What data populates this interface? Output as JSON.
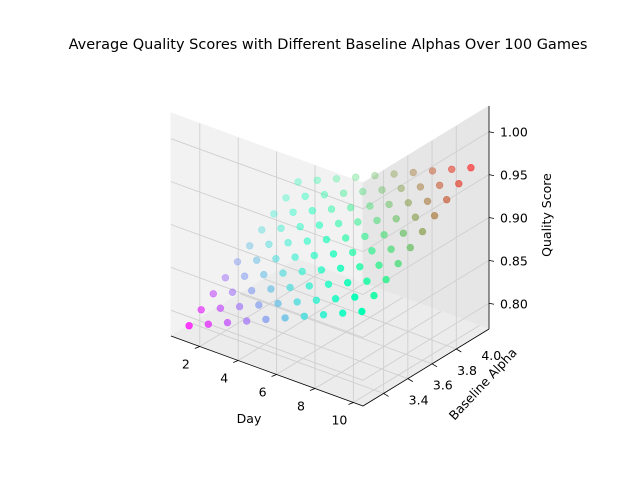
{
  "chart_data": {
    "type": "scatter",
    "title": "Average Quality Scores with Different Baseline Alphas Over 100 Games",
    "xlabel": "Day",
    "ylabel": "Baseline Alpha",
    "zlabel": "Quality Score",
    "x_ticks": [
      "2",
      "4",
      "6",
      "8",
      "10"
    ],
    "y_ticks": [
      "3.4",
      "3.6",
      "3.8",
      "4.0"
    ],
    "z_ticks": [
      "0.80",
      "0.85",
      "0.90",
      "0.95",
      "1.00"
    ],
    "xlim": [
      0.5,
      10.5
    ],
    "ylim": [
      3.23,
      4.27
    ],
    "zlim": [
      0.77,
      1.03
    ],
    "grid": true,
    "colormap": "rainbow",
    "point_alpha_range": [
      0.3,
      1.0
    ],
    "points": [
      {
        "x": 1,
        "y": 3.3,
        "z": 0.78
      },
      {
        "x": 2,
        "y": 3.3,
        "z": 0.79
      },
      {
        "x": 3,
        "y": 3.3,
        "z": 0.8
      },
      {
        "x": 4,
        "y": 3.3,
        "z": 0.81
      },
      {
        "x": 5,
        "y": 3.3,
        "z": 0.82
      },
      {
        "x": 6,
        "y": 3.3,
        "z": 0.83
      },
      {
        "x": 7,
        "y": 3.3,
        "z": 0.84
      },
      {
        "x": 8,
        "y": 3.3,
        "z": 0.85
      },
      {
        "x": 9,
        "y": 3.3,
        "z": 0.86
      },
      {
        "x": 10,
        "y": 3.3,
        "z": 0.87
      },
      {
        "x": 1,
        "y": 3.4,
        "z": 0.79
      },
      {
        "x": 2,
        "y": 3.4,
        "z": 0.8
      },
      {
        "x": 3,
        "y": 3.4,
        "z": 0.81
      },
      {
        "x": 4,
        "y": 3.4,
        "z": 0.82
      },
      {
        "x": 5,
        "y": 3.4,
        "z": 0.83
      },
      {
        "x": 6,
        "y": 3.4,
        "z": 0.84
      },
      {
        "x": 7,
        "y": 3.4,
        "z": 0.85
      },
      {
        "x": 8,
        "y": 3.4,
        "z": 0.86
      },
      {
        "x": 9,
        "y": 3.4,
        "z": 0.87
      },
      {
        "x": 10,
        "y": 3.4,
        "z": 0.88
      },
      {
        "x": 1,
        "y": 3.5,
        "z": 0.8
      },
      {
        "x": 2,
        "y": 3.5,
        "z": 0.81
      },
      {
        "x": 3,
        "y": 3.5,
        "z": 0.82
      },
      {
        "x": 4,
        "y": 3.5,
        "z": 0.83
      },
      {
        "x": 5,
        "y": 3.5,
        "z": 0.84
      },
      {
        "x": 6,
        "y": 3.5,
        "z": 0.85
      },
      {
        "x": 7,
        "y": 3.5,
        "z": 0.86
      },
      {
        "x": 8,
        "y": 3.5,
        "z": 0.87
      },
      {
        "x": 9,
        "y": 3.5,
        "z": 0.88
      },
      {
        "x": 10,
        "y": 3.5,
        "z": 0.89
      },
      {
        "x": 1,
        "y": 3.6,
        "z": 0.81
      },
      {
        "x": 2,
        "y": 3.6,
        "z": 0.82
      },
      {
        "x": 3,
        "y": 3.6,
        "z": 0.83
      },
      {
        "x": 4,
        "y": 3.6,
        "z": 0.84
      },
      {
        "x": 5,
        "y": 3.6,
        "z": 0.85
      },
      {
        "x": 6,
        "y": 3.6,
        "z": 0.86
      },
      {
        "x": 7,
        "y": 3.6,
        "z": 0.87
      },
      {
        "x": 8,
        "y": 3.6,
        "z": 0.88
      },
      {
        "x": 9,
        "y": 3.6,
        "z": 0.89
      },
      {
        "x": 10,
        "y": 3.6,
        "z": 0.9
      },
      {
        "x": 1,
        "y": 3.7,
        "z": 0.82
      },
      {
        "x": 2,
        "y": 3.7,
        "z": 0.83
      },
      {
        "x": 3,
        "y": 3.7,
        "z": 0.84
      },
      {
        "x": 4,
        "y": 3.7,
        "z": 0.85
      },
      {
        "x": 5,
        "y": 3.7,
        "z": 0.86
      },
      {
        "x": 6,
        "y": 3.7,
        "z": 0.87
      },
      {
        "x": 7,
        "y": 3.7,
        "z": 0.88
      },
      {
        "x": 8,
        "y": 3.7,
        "z": 0.89
      },
      {
        "x": 9,
        "y": 3.7,
        "z": 0.9
      },
      {
        "x": 10,
        "y": 3.7,
        "z": 0.91
      },
      {
        "x": 1,
        "y": 3.8,
        "z": 0.83
      },
      {
        "x": 2,
        "y": 3.8,
        "z": 0.84
      },
      {
        "x": 3,
        "y": 3.8,
        "z": 0.85
      },
      {
        "x": 4,
        "y": 3.8,
        "z": 0.86
      },
      {
        "x": 5,
        "y": 3.8,
        "z": 0.87
      },
      {
        "x": 6,
        "y": 3.8,
        "z": 0.88
      },
      {
        "x": 7,
        "y": 3.8,
        "z": 0.89
      },
      {
        "x": 8,
        "y": 3.8,
        "z": 0.9
      },
      {
        "x": 9,
        "y": 3.8,
        "z": 0.91
      },
      {
        "x": 10,
        "y": 3.8,
        "z": 0.92
      },
      {
        "x": 1,
        "y": 3.9,
        "z": 0.84
      },
      {
        "x": 2,
        "y": 3.9,
        "z": 0.85
      },
      {
        "x": 3,
        "y": 3.9,
        "z": 0.86
      },
      {
        "x": 4,
        "y": 3.9,
        "z": 0.87
      },
      {
        "x": 5,
        "y": 3.9,
        "z": 0.88
      },
      {
        "x": 6,
        "y": 3.9,
        "z": 0.89
      },
      {
        "x": 7,
        "y": 3.9,
        "z": 0.9
      },
      {
        "x": 8,
        "y": 3.9,
        "z": 0.91
      },
      {
        "x": 9,
        "y": 3.9,
        "z": 0.92
      },
      {
        "x": 10,
        "y": 3.9,
        "z": 0.93
      },
      {
        "x": 1,
        "y": 4.0,
        "z": 0.85
      },
      {
        "x": 2,
        "y": 4.0,
        "z": 0.86
      },
      {
        "x": 3,
        "y": 4.0,
        "z": 0.87
      },
      {
        "x": 4,
        "y": 4.0,
        "z": 0.88
      },
      {
        "x": 5,
        "y": 4.0,
        "z": 0.89
      },
      {
        "x": 6,
        "y": 4.0,
        "z": 0.9
      },
      {
        "x": 7,
        "y": 4.0,
        "z": 0.91
      },
      {
        "x": 8,
        "y": 4.0,
        "z": 0.92
      },
      {
        "x": 9,
        "y": 4.0,
        "z": 0.93
      },
      {
        "x": 10,
        "y": 4.0,
        "z": 0.94
      },
      {
        "x": 1,
        "y": 4.1,
        "z": 0.86
      },
      {
        "x": 2,
        "y": 4.1,
        "z": 0.87
      },
      {
        "x": 3,
        "y": 4.1,
        "z": 0.88
      },
      {
        "x": 4,
        "y": 4.1,
        "z": 0.89
      },
      {
        "x": 5,
        "y": 4.1,
        "z": 0.9
      },
      {
        "x": 6,
        "y": 4.1,
        "z": 0.91
      },
      {
        "x": 7,
        "y": 4.1,
        "z": 0.92
      },
      {
        "x": 8,
        "y": 4.1,
        "z": 0.93
      },
      {
        "x": 9,
        "y": 4.1,
        "z": 0.94
      },
      {
        "x": 10,
        "y": 4.1,
        "z": 0.95
      },
      {
        "x": 1,
        "y": 4.2,
        "z": 0.87
      },
      {
        "x": 2,
        "y": 4.2,
        "z": 0.88
      },
      {
        "x": 3,
        "y": 4.2,
        "z": 0.89
      },
      {
        "x": 4,
        "y": 4.2,
        "z": 0.9
      },
      {
        "x": 5,
        "y": 4.2,
        "z": 0.91
      },
      {
        "x": 6,
        "y": 4.2,
        "z": 0.92
      },
      {
        "x": 7,
        "y": 4.2,
        "z": 0.93
      },
      {
        "x": 8,
        "y": 4.2,
        "z": 0.94
      },
      {
        "x": 9,
        "y": 4.2,
        "z": 0.95
      },
      {
        "x": 10,
        "y": 4.2,
        "z": 0.96
      }
    ]
  }
}
